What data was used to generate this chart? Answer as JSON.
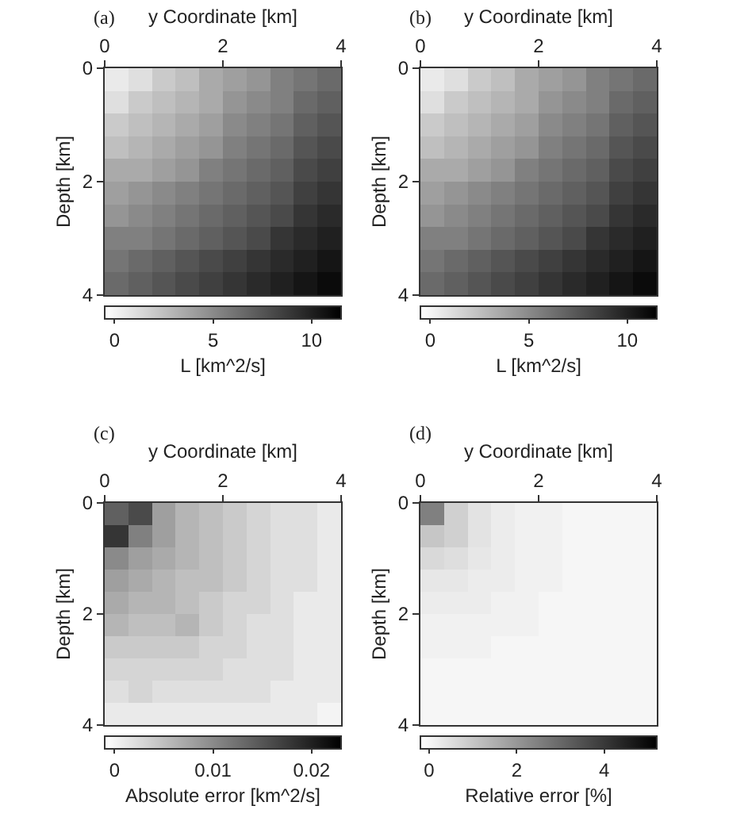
{
  "chart_data": [
    {
      "type": "heatmap",
      "title": "(a)",
      "xlabel": "y Coordinate [km]",
      "ylabel": "Depth [km]",
      "clabel": "L [km^2/s]",
      "x": [
        0.2,
        0.6,
        1.0,
        1.4,
        1.8,
        2.2,
        2.6,
        3.0,
        3.4,
        3.8
      ],
      "xlim": [
        0,
        4
      ],
      "xticks": [
        0,
        2,
        4
      ],
      "ylim": [
        4,
        0
      ],
      "yticks": [
        0,
        2,
        4
      ],
      "clim": [
        -0.5,
        11.5
      ],
      "cticks": [
        0,
        5,
        10
      ],
      "cells": [
        [
          0.5,
          1,
          2,
          2.5,
          3.5,
          4,
          4.5,
          5.5,
          6,
          6.5
        ],
        [
          1,
          2,
          2.5,
          3,
          3.5,
          4.5,
          5,
          5.5,
          6.5,
          7
        ],
        [
          2,
          2.5,
          3,
          3.5,
          4,
          5,
          5.5,
          6,
          7,
          7.5
        ],
        [
          2.5,
          3,
          3.5,
          4,
          4.5,
          5.5,
          6,
          6.5,
          7.5,
          8
        ],
        [
          3.5,
          3.5,
          4,
          4.5,
          5.5,
          6,
          6.5,
          7,
          8,
          8.5
        ],
        [
          4,
          4.5,
          5,
          5.5,
          6,
          6.5,
          7,
          7.5,
          8.5,
          9
        ],
        [
          4.5,
          5,
          5.5,
          6,
          6.5,
          7,
          7.5,
          8,
          9,
          9.5
        ],
        [
          5.5,
          5.5,
          6,
          6.5,
          7,
          7.5,
          8,
          9,
          9.5,
          10
        ],
        [
          6,
          6.5,
          7,
          7.5,
          8,
          8.5,
          9,
          9.5,
          10,
          10.5
        ],
        [
          6.5,
          7,
          7.5,
          8,
          8.5,
          9,
          9.5,
          10,
          10.5,
          11
        ]
      ]
    },
    {
      "type": "heatmap",
      "title": "(b)",
      "xlabel": "y Coordinate [km]",
      "ylabel": "Depth [km]",
      "clabel": "L [km^2/s]",
      "x": [
        0.2,
        0.6,
        1.0,
        1.4,
        1.8,
        2.2,
        2.6,
        3.0,
        3.4,
        3.8
      ],
      "xlim": [
        0,
        4
      ],
      "xticks": [
        0,
        2,
        4
      ],
      "ylim": [
        4,
        0
      ],
      "yticks": [
        0,
        2,
        4
      ],
      "clim": [
        -0.5,
        11.5
      ],
      "cticks": [
        0,
        5,
        10
      ],
      "cells": [
        [
          0.5,
          1,
          2,
          2.5,
          3.5,
          4,
          4.5,
          5.5,
          6,
          6.5
        ],
        [
          1,
          2,
          2.5,
          3,
          3.5,
          4.5,
          5,
          5.5,
          6.5,
          7
        ],
        [
          2,
          2.5,
          3,
          3.5,
          4,
          5,
          5.5,
          6,
          7,
          7.5
        ],
        [
          2.5,
          3,
          3.5,
          4,
          4.5,
          5.5,
          6,
          6.5,
          7.5,
          8
        ],
        [
          3.5,
          3.5,
          4,
          4.5,
          5.5,
          6,
          6.5,
          7,
          8,
          8.5
        ],
        [
          4,
          4.5,
          5,
          5.5,
          6,
          6.5,
          7,
          7.5,
          8.5,
          9
        ],
        [
          4.5,
          5,
          5.5,
          6,
          6.5,
          7,
          7.5,
          8,
          9,
          9.5
        ],
        [
          5.5,
          5.5,
          6,
          6.5,
          7,
          7.5,
          8,
          9,
          9.5,
          10
        ],
        [
          6,
          6.5,
          7,
          7.5,
          8,
          8.5,
          9,
          9.5,
          10,
          10.5
        ],
        [
          6.5,
          7,
          7.5,
          8,
          8.5,
          9,
          9.5,
          10,
          10.5,
          11
        ]
      ]
    },
    {
      "type": "heatmap",
      "title": "(c)",
      "xlabel": "y Coordinate [km]",
      "ylabel": "Depth [km]",
      "clabel": "Absolute error [km^2/s]",
      "x": [
        0.2,
        0.6,
        1.0,
        1.4,
        1.8,
        2.2,
        2.6,
        3.0,
        3.4,
        3.8
      ],
      "xlim": [
        0,
        4
      ],
      "xticks": [
        0,
        2,
        4
      ],
      "ylim": [
        4,
        0
      ],
      "yticks": [
        0,
        2,
        4
      ],
      "clim": [
        -0.001,
        0.023
      ],
      "cticks": [
        0,
        0.01,
        0.02
      ],
      "cells": [
        [
          0.014,
          0.016,
          0.008,
          0.006,
          0.005,
          0.004,
          0.003,
          0.002,
          0.002,
          0.001
        ],
        [
          0.018,
          0.011,
          0.008,
          0.006,
          0.005,
          0.004,
          0.003,
          0.002,
          0.002,
          0.001
        ],
        [
          0.01,
          0.008,
          0.007,
          0.006,
          0.005,
          0.004,
          0.003,
          0.002,
          0.002,
          0.001
        ],
        [
          0.008,
          0.007,
          0.006,
          0.005,
          0.005,
          0.004,
          0.003,
          0.002,
          0.002,
          0.001
        ],
        [
          0.007,
          0.006,
          0.006,
          0.005,
          0.004,
          0.003,
          0.003,
          0.002,
          0.001,
          0.001
        ],
        [
          0.006,
          0.005,
          0.005,
          0.006,
          0.004,
          0.003,
          0.002,
          0.002,
          0.001,
          0.001
        ],
        [
          0.004,
          0.004,
          0.004,
          0.004,
          0.003,
          0.003,
          0.002,
          0.002,
          0.001,
          0.001
        ],
        [
          0.003,
          0.003,
          0.003,
          0.003,
          0.003,
          0.002,
          0.002,
          0.002,
          0.001,
          0.001
        ],
        [
          0.002,
          0.003,
          0.002,
          0.002,
          0.002,
          0.002,
          0.002,
          0.001,
          0.001,
          0.001
        ],
        [
          0.001,
          0.001,
          0.001,
          0.001,
          0.001,
          0.001,
          0.001,
          0.001,
          0.001,
          0
        ]
      ]
    },
    {
      "type": "heatmap",
      "title": "(d)",
      "xlabel": "y Coordinate [km]",
      "ylabel": "Depth [km]",
      "clabel": "Relative error [%]",
      "x": [
        0.2,
        0.6,
        1.0,
        1.4,
        1.8,
        2.2,
        2.6,
        3.0,
        3.4,
        3.8
      ],
      "xlim": [
        0,
        4
      ],
      "xticks": [
        0,
        2,
        4
      ],
      "ylim": [
        4,
        0
      ],
      "yticks": [
        0,
        2,
        4
      ],
      "clim": [
        -0.2,
        5.2
      ],
      "cticks": [
        0,
        2,
        4
      ],
      "cells": [
        [
          2.5,
          0.8,
          0.4,
          0.2,
          0.1,
          0.1,
          0,
          0,
          0,
          0
        ],
        [
          1.0,
          0.8,
          0.4,
          0.2,
          0.1,
          0.1,
          0,
          0,
          0,
          0
        ],
        [
          0.6,
          0.5,
          0.3,
          0.2,
          0.1,
          0.1,
          0,
          0,
          0,
          0
        ],
        [
          0.3,
          0.3,
          0.2,
          0.2,
          0.1,
          0.1,
          0,
          0,
          0,
          0
        ],
        [
          0.2,
          0.2,
          0.2,
          0.1,
          0.1,
          0,
          0,
          0,
          0,
          0
        ],
        [
          0.1,
          0.1,
          0.1,
          0.1,
          0.1,
          0,
          0,
          0,
          0,
          0
        ],
        [
          0.1,
          0.1,
          0.1,
          0,
          0,
          0,
          0,
          0,
          0,
          0
        ],
        [
          0,
          0,
          0,
          0,
          0,
          0,
          0,
          0,
          0,
          0
        ],
        [
          0,
          0,
          0,
          0,
          0,
          0,
          0,
          0,
          0,
          0
        ],
        [
          0,
          0,
          0,
          0,
          0,
          0,
          0,
          0,
          0,
          0
        ]
      ]
    }
  ]
}
